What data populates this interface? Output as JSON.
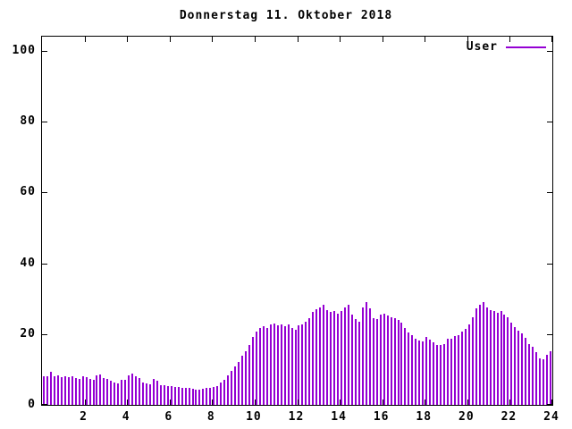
{
  "title": "Donnerstag 11. Oktober 2018",
  "legend": {
    "label": "User"
  },
  "colors": {
    "series": "#9400D3",
    "axis": "#000000",
    "background": "#FFFFFF",
    "text": "#000000"
  },
  "chart_data": {
    "type": "bar",
    "title": "Donnerstag 11. Oktober 2018",
    "xlabel": "",
    "ylabel": "",
    "xlim": [
      0,
      24
    ],
    "ylim": [
      0,
      104
    ],
    "x_ticks": [
      2,
      4,
      6,
      8,
      10,
      12,
      14,
      16,
      18,
      20,
      22,
      24
    ],
    "y_ticks": [
      0,
      20,
      40,
      60,
      80,
      100
    ],
    "grid": false,
    "legend_position": "top-right",
    "x_unit": "hour of day",
    "x_step_minutes": 10,
    "series": [
      {
        "name": "User",
        "values": [
          8.2,
          8.0,
          9.3,
          8.1,
          8.3,
          7.9,
          8.1,
          7.9,
          8.2,
          7.6,
          7.4,
          8.1,
          7.8,
          7.2,
          7.0,
          8.3,
          8.7,
          7.5,
          7.2,
          6.9,
          6.4,
          6.1,
          7.0,
          7.1,
          8.4,
          8.8,
          8.1,
          7.7,
          6.4,
          6.1,
          5.9,
          7.2,
          6.9,
          5.6,
          5.5,
          5.4,
          5.3,
          5.1,
          5.0,
          4.9,
          4.8,
          4.7,
          4.5,
          4.3,
          4.2,
          4.6,
          4.7,
          4.8,
          5.0,
          5.4,
          6.2,
          7.0,
          8.3,
          9.6,
          10.8,
          12.2,
          13.8,
          15.2,
          17.0,
          19.2,
          20.8,
          21.6,
          22.2,
          21.8,
          22.6,
          23.0,
          22.4,
          22.8,
          22.2,
          22.6,
          21.8,
          21.2,
          22.4,
          22.8,
          23.6,
          24.6,
          26.2,
          27.0,
          27.6,
          28.2,
          26.8,
          26.2,
          26.6,
          25.8,
          26.4,
          27.6,
          28.4,
          25.4,
          24.2,
          23.4,
          27.4,
          29.0,
          27.2,
          24.6,
          24.2,
          25.4,
          25.8,
          25.2,
          24.8,
          24.4,
          24.0,
          23.2,
          21.6,
          20.4,
          19.6,
          18.8,
          18.2,
          17.8,
          19.2,
          18.4,
          17.6,
          17.0,
          16.8,
          17.2,
          18.6,
          18.8,
          19.4,
          19.6,
          20.8,
          21.4,
          22.6,
          24.8,
          27.2,
          28.2,
          29.0,
          27.4,
          26.8,
          26.4,
          26.0,
          26.6,
          25.6,
          24.8,
          23.2,
          22.0,
          21.0,
          20.2,
          19.0,
          17.2,
          16.4,
          14.8,
          13.2,
          13.0,
          14.2,
          15.2
        ]
      }
    ]
  }
}
